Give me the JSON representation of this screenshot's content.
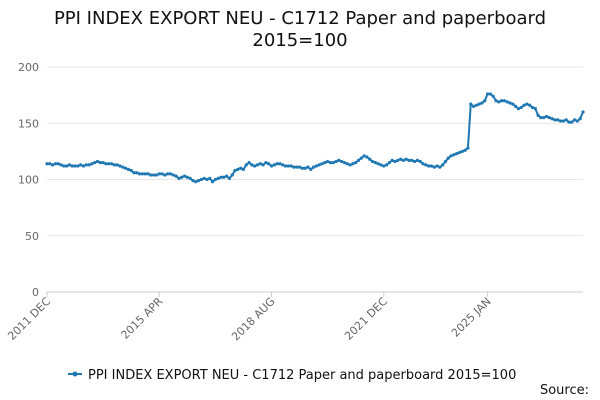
{
  "source_label": "Source:",
  "chart_data": {
    "type": "line",
    "title_line1": "PPI INDEX EXPORT NEU - C1712 Paper and paperboard",
    "title_line2": "2015=100",
    "xlabel": "",
    "ylabel": "",
    "ylim": [
      0,
      200
    ],
    "yticks": [
      0,
      50,
      100,
      150,
      200
    ],
    "x_tick_labels": [
      "2011 DEC",
      "2015 APR",
      "2018 AUG",
      "2021 DEC",
      "2025 JAN"
    ],
    "x_tick_index": [
      0,
      40,
      80,
      120,
      157
    ],
    "grid": "horizontal",
    "legend_position": "bottom",
    "series_color": "#1f78b4",
    "series": [
      {
        "name": "PPI INDEX EXPORT NEU - C1712 Paper and paperboard 2015=100",
        "x_start": "2011 DEC",
        "frequency": "monthly",
        "values": [
          114,
          114,
          113,
          114,
          114,
          113,
          112,
          112,
          113,
          112,
          112,
          112,
          113,
          112,
          113,
          113,
          114,
          115,
          116,
          115,
          115,
          114,
          114,
          114,
          113,
          113,
          112,
          111,
          110,
          109,
          108,
          106,
          106,
          105,
          105,
          105,
          105,
          104,
          104,
          104,
          105,
          105,
          104,
          105,
          105,
          104,
          103,
          101,
          102,
          103,
          102,
          101,
          99,
          98,
          99,
          100,
          101,
          100,
          101,
          98,
          100,
          101,
          102,
          102,
          103,
          101,
          104,
          108,
          109,
          110,
          109,
          113,
          115,
          113,
          112,
          113,
          114,
          113,
          115,
          114,
          112,
          113,
          114,
          114,
          113,
          112,
          112,
          112,
          111,
          111,
          111,
          110,
          110,
          111,
          109,
          111,
          112,
          113,
          114,
          115,
          116,
          115,
          115,
          116,
          117,
          116,
          115,
          114,
          113,
          114,
          115,
          117,
          119,
          121,
          120,
          118,
          116,
          115,
          114,
          113,
          112,
          113,
          115,
          117,
          116,
          117,
          118,
          117,
          118,
          117,
          117,
          116,
          117,
          116,
          114,
          113,
          112,
          112,
          111,
          112,
          111,
          113,
          116,
          119,
          121,
          122,
          123,
          124,
          125,
          126,
          128,
          167,
          165,
          166,
          167,
          168,
          170,
          176,
          176,
          174,
          170,
          169,
          170,
          170,
          169,
          168,
          167,
          165,
          163,
          164,
          166,
          167,
          166,
          164,
          163,
          157,
          155,
          155,
          156,
          155,
          154,
          153,
          153,
          152,
          152,
          153,
          151,
          151,
          153,
          152,
          154,
          160
        ]
      }
    ]
  }
}
